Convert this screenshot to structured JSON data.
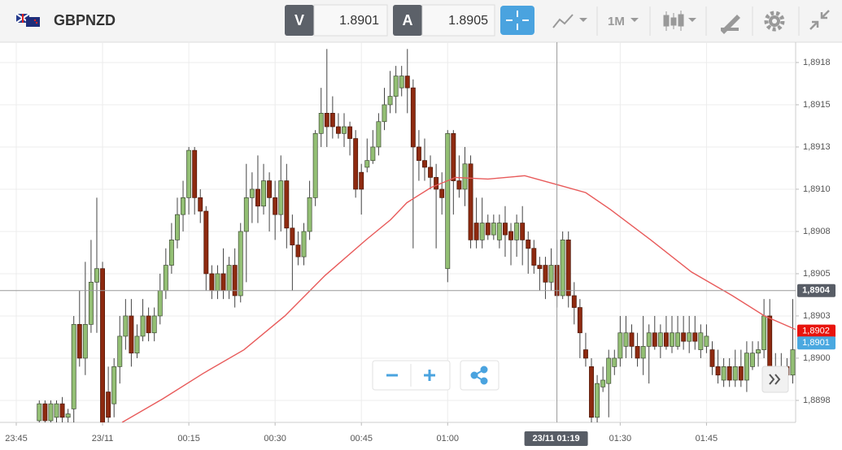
{
  "toolbar": {
    "symbol": "GBPNZD",
    "bid_label": "V",
    "bid": "1.8901",
    "ask_label": "A",
    "ask": "1.8905",
    "timeframe": "1M"
  },
  "chart_data": {
    "type": "candlestick",
    "x": [
      4,
      5,
      6,
      7,
      8,
      9,
      10,
      11,
      12,
      13,
      14,
      15,
      16,
      17,
      18,
      19,
      20,
      21,
      22,
      23,
      24,
      25,
      26,
      27,
      28,
      29,
      30,
      31,
      32,
      33,
      34,
      35,
      36,
      37,
      38,
      39,
      40,
      41,
      42,
      43,
      44,
      45,
      46,
      47,
      48,
      49,
      50,
      51,
      52,
      53,
      54,
      55,
      56,
      57,
      58,
      59,
      60,
      61,
      62,
      63,
      64,
      65,
      66,
      67,
      68,
      69,
      70,
      71,
      72,
      73,
      74,
      75,
      76,
      77,
      78,
      79,
      80,
      81,
      82,
      83,
      84,
      85,
      86,
      87,
      88,
      89,
      90,
      91,
      92,
      93,
      94,
      95,
      96,
      97,
      98,
      99,
      100,
      101,
      102,
      103,
      104,
      105,
      106,
      107,
      108,
      109,
      110,
      111,
      112,
      113,
      114,
      115,
      116,
      117,
      118,
      119,
      120,
      121,
      122,
      123,
      124,
      125,
      126,
      127,
      128,
      129,
      130,
      131,
      132,
      133,
      134,
      135
    ],
    "open": [
      1.88968,
      1.88978,
      1.88968,
      1.8897,
      1.88978,
      1.8897,
      1.88975,
      1.89025,
      1.89005,
      1.89025,
      1.8905,
      1.89058,
      1.88985,
      1.88978,
      1.89,
      1.89018,
      1.8903,
      1.89008,
      1.89018,
      1.8903,
      1.8902,
      1.8903,
      1.89045,
      1.8906,
      1.89075,
      1.8909,
      1.891,
      1.89128,
      1.891,
      1.89092,
      1.89055,
      1.89045,
      1.89055,
      1.89045,
      1.8906,
      1.89042,
      1.8908,
      1.891,
      1.89105,
      1.89095,
      1.8911,
      1.891,
      1.8909,
      1.8911,
      1.89082,
      1.89072,
      1.89065,
      1.8908,
      1.891,
      1.89138,
      1.8915,
      1.8915,
      1.89142,
      1.89138,
      1.89142,
      1.89135,
      1.89115,
      1.89118,
      1.89122,
      1.8913,
      1.89145,
      1.89155,
      1.8916,
      1.89165,
      1.89172,
      1.89165,
      1.8913,
      1.89122,
      1.89118,
      1.89112,
      1.89105,
      1.89058,
      1.89138,
      1.8911,
      1.89105,
      1.8912,
      1.89085,
      1.89075,
      1.89085,
      1.89078,
      1.89075,
      1.89085,
      1.8908,
      1.89075,
      1.89085,
      1.89075,
      1.8907,
      1.8906,
      1.8906,
      1.8905,
      1.8906,
      1.89042,
      1.89075,
      1.89042,
      1.89035,
      1.8901,
      1.89,
      1.8897,
      1.88988,
      1.8899,
      1.89,
      1.89005,
      1.89012,
      1.8902,
      1.89012,
      1.89005,
      1.89012,
      1.8902,
      1.89012,
      1.8902,
      1.89012,
      1.89012,
      1.8902,
      1.89015,
      1.8902,
      1.8901,
      1.89012,
      1.8901,
      1.89,
      1.88992,
      1.89,
      1.88992,
      1.89,
      1.88992,
      1.89,
      1.89008,
      1.8901,
      1.8903,
      1.89,
      1.89,
      1.89,
      1.88995
    ],
    "high": [
      1.8898,
      1.8898,
      1.8898,
      1.8898,
      1.88982,
      1.88975,
      1.8903,
      1.89045,
      1.89062,
      1.89075,
      1.891,
      1.89062,
      1.89,
      1.89005,
      1.8903,
      1.8904,
      1.8904,
      1.89025,
      1.8904,
      1.89035,
      1.89035,
      1.89055,
      1.8907,
      1.89085,
      1.891,
      1.8911,
      1.8913,
      1.8913,
      1.89105,
      1.89095,
      1.8906,
      1.8906,
      1.8907,
      1.89065,
      1.8907,
      1.89085,
      1.8912,
      1.89115,
      1.89125,
      1.8912,
      1.89115,
      1.8911,
      1.89125,
      1.8912,
      1.8909,
      1.8908,
      1.89085,
      1.8911,
      1.8914,
      1.89165,
      1.89188,
      1.8916,
      1.8915,
      1.8915,
      1.89145,
      1.8914,
      1.8912,
      1.89135,
      1.8914,
      1.8915,
      1.89165,
      1.89175,
      1.89178,
      1.89178,
      1.89188,
      1.8917,
      1.8914,
      1.89135,
      1.89125,
      1.8912,
      1.89115,
      1.8914,
      1.8914,
      1.89125,
      1.8913,
      1.89125,
      1.891,
      1.891,
      1.8909,
      1.8909,
      1.8909,
      1.89095,
      1.89085,
      1.8909,
      1.89095,
      1.8908,
      1.89075,
      1.89065,
      1.89065,
      1.8907,
      1.89075,
      1.8908,
      1.8908,
      1.8905,
      1.8904,
      1.8902,
      1.89005,
      1.88995,
      1.89,
      1.8901,
      1.8901,
      1.8903,
      1.8903,
      1.89025,
      1.8902,
      1.8903,
      1.89025,
      1.8903,
      1.89025,
      1.8903,
      1.8903,
      1.8903,
      1.8903,
      1.8903,
      1.8903,
      1.89025,
      1.89025,
      1.89015,
      1.8901,
      1.89005,
      1.89005,
      1.8901,
      1.8901,
      1.89015,
      1.89015,
      1.89015,
      1.8904,
      1.8904,
      1.89008,
      1.89008,
      1.89005,
      1.8904
    ],
    "low": [
      1.88966,
      1.88966,
      1.88966,
      1.88966,
      1.88966,
      1.88966,
      1.88966,
      1.89,
      1.88995,
      1.8902,
      1.8902,
      1.88966,
      1.88966,
      1.8897,
      1.8899,
      1.8901,
      1.89,
      1.89005,
      1.89015,
      1.89015,
      1.89015,
      1.89025,
      1.8904,
      1.89055,
      1.8907,
      1.8908,
      1.8909,
      1.8909,
      1.89085,
      1.89045,
      1.8904,
      1.8904,
      1.8904,
      1.8904,
      1.89035,
      1.89038,
      1.8905,
      1.89085,
      1.89085,
      1.8909,
      1.8908,
      1.89075,
      1.8908,
      1.8907,
      1.89045,
      1.8906,
      1.8906,
      1.89075,
      1.89095,
      1.8913,
      1.8913,
      1.89135,
      1.89135,
      1.8913,
      1.89125,
      1.891,
      1.8909,
      1.89115,
      1.8912,
      1.89125,
      1.8914,
      1.8915,
      1.8915,
      1.8916,
      1.8915,
      1.8907,
      1.8911,
      1.8911,
      1.89105,
      1.8907,
      1.8909,
      1.8905,
      1.8909,
      1.891,
      1.89095,
      1.8907,
      1.8907,
      1.8907,
      1.89075,
      1.89075,
      1.8907,
      1.89065,
      1.8906,
      1.89065,
      1.8906,
      1.89055,
      1.89055,
      1.89045,
      1.8904,
      1.89045,
      1.89035,
      1.8904,
      1.89035,
      1.89025,
      1.89005,
      1.89,
      1.88966,
      1.88966,
      1.88985,
      1.8897,
      1.88995,
      1.89,
      1.89005,
      1.89005,
      1.89,
      1.88995,
      1.8899,
      1.8901,
      1.89005,
      1.8901,
      1.89008,
      1.8901,
      1.8901,
      1.89008,
      1.8901,
      1.89005,
      1.89008,
      1.88995,
      1.8899,
      1.88988,
      1.88988,
      1.88988,
      1.88988,
      1.88985,
      1.88998,
      1.89,
      1.89005,
      1.88995,
      1.8899,
      1.8899,
      1.8899,
      1.8899
    ],
    "close": [
      1.88978,
      1.88968,
      1.88978,
      1.88978,
      1.8897,
      1.88972,
      1.89025,
      1.89005,
      1.89025,
      1.8905,
      1.89058,
      1.88966,
      1.8897,
      1.89,
      1.89018,
      1.8903,
      1.89008,
      1.89018,
      1.8903,
      1.8902,
      1.8903,
      1.89045,
      1.8906,
      1.89075,
      1.8909,
      1.891,
      1.89128,
      1.891,
      1.89092,
      1.89055,
      1.89045,
      1.89055,
      1.89045,
      1.8906,
      1.89042,
      1.8908,
      1.891,
      1.89105,
      1.89095,
      1.8911,
      1.891,
      1.8909,
      1.8911,
      1.89082,
      1.89072,
      1.89065,
      1.8908,
      1.891,
      1.89138,
      1.8915,
      1.89142,
      1.89142,
      1.89138,
      1.89142,
      1.89135,
      1.89105,
      1.89105,
      1.89122,
      1.8913,
      1.89145,
      1.89155,
      1.8916,
      1.89172,
      1.89172,
      1.89165,
      1.8913,
      1.89122,
      1.89118,
      1.89112,
      1.89105,
      1.891,
      1.89138,
      1.8911,
      1.89105,
      1.8912,
      1.89075,
      1.89075,
      1.89085,
      1.89078,
      1.89085,
      1.89085,
      1.89078,
      1.89075,
      1.89085,
      1.89075,
      1.8907,
      1.8906,
      1.89058,
      1.8905,
      1.8906,
      1.89042,
      1.89075,
      1.89042,
      1.89035,
      1.8902,
      1.89005,
      1.8897,
      1.8899,
      1.88992,
      1.89005,
      1.89005,
      1.8902,
      1.8902,
      1.89012,
      1.89005,
      1.89012,
      1.8902,
      1.89012,
      1.8902,
      1.89012,
      1.8902,
      1.8902,
      1.89015,
      1.8902,
      1.89015,
      1.8902,
      1.89018,
      1.89,
      1.88995,
      1.89,
      1.88992,
      1.89,
      1.88992,
      1.89008,
      1.89008,
      1.8901,
      1.8903,
      1.89,
      1.88998,
      1.88995,
      1.88995,
      1.8901
    ],
    "up_color": "#93bf74",
    "down_color": "#8e2a10",
    "ma": {
      "color": "#e85a5a",
      "x": [
        18.4,
        25.5,
        32.5,
        39.6,
        46.7,
        53.7,
        60.8,
        65.1,
        67.9,
        72.1,
        76.4,
        82.0,
        88.4,
        94.8,
        99.0,
        103.3,
        110.3,
        117.4,
        124.5,
        130.1,
        135.5
      ],
      "values": [
        1.88967,
        1.88981,
        1.88996,
        1.8901,
        1.8903,
        1.89054,
        1.89075,
        1.89087,
        1.89097,
        1.89106,
        1.89112,
        1.89111,
        1.89113,
        1.89107,
        1.89103,
        1.89093,
        1.89075,
        1.89056,
        1.89042,
        1.8903,
        1.89022
      ]
    },
    "xlim": [
      -2.83,
      135.5
    ],
    "xticks": [
      {
        "value": 0,
        "label": "23:45"
      },
      {
        "value": 15,
        "label": "23/11"
      },
      {
        "value": 30,
        "label": "00:15"
      },
      {
        "value": 45,
        "label": "00:30"
      },
      {
        "value": 60,
        "label": "00:45"
      },
      {
        "value": 75,
        "label": "01:00"
      },
      {
        "value": 105,
        "label": "01:30"
      },
      {
        "value": 120,
        "label": "01:45"
      }
    ],
    "ylim": [
      1.88967,
      1.89192
    ],
    "yticks": [
      {
        "value": 1.8898,
        "label": "1,8898"
      },
      {
        "value": 1.89005,
        "label": "1,8900"
      },
      {
        "value": 1.8903,
        "label": "1,8903"
      },
      {
        "value": 1.89055,
        "label": "1,8905"
      },
      {
        "value": 1.8908,
        "label": "1,8908"
      },
      {
        "value": 1.89105,
        "label": "1,8910"
      },
      {
        "value": 1.8913,
        "label": "1,8913"
      },
      {
        "value": 1.89155,
        "label": "1,8915"
      },
      {
        "value": 1.8918,
        "label": "1,8918"
      }
    ],
    "grid": true,
    "price_markers": [
      {
        "value": 1.89021,
        "label": "1,8902",
        "color": "#e8130c"
      },
      {
        "value": 1.89014,
        "label": "1,8901",
        "color": "#4aa8e0"
      }
    ],
    "crosshair": {
      "x": 94,
      "y": 1.89045,
      "x_label": "23/11 01:19",
      "y_label": "1,8904",
      "color": "#585d66"
    }
  }
}
